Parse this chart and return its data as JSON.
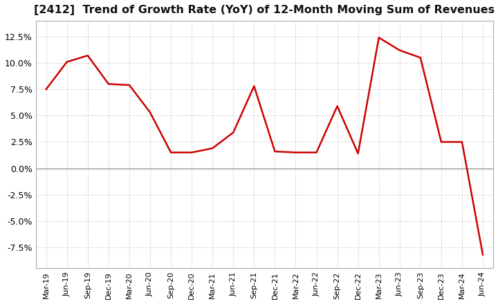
{
  "title": "[2412]  Trend of Growth Rate (YoY) of 12-Month Moving Sum of Revenues",
  "title_fontsize": 11.5,
  "line_color": "#cc0000",
  "background_color": "#ffffff",
  "grid_color": "#aaaaaa",
  "zero_line_color": "#888888",
  "ylim": [
    -9.5,
    14.0
  ],
  "yticks": [
    -7.5,
    -5.0,
    -2.5,
    0.0,
    2.5,
    5.0,
    7.5,
    10.0,
    12.5
  ],
  "x_labels": [
    "Mar-19",
    "Jun-19",
    "Sep-19",
    "Dec-19",
    "Mar-20",
    "Jun-20",
    "Sep-20",
    "Dec-20",
    "Mar-21",
    "Jun-21",
    "Sep-21",
    "Dec-21",
    "Mar-22",
    "Jun-22",
    "Sep-22",
    "Dec-22",
    "Mar-23",
    "Jun-23",
    "Sep-23",
    "Dec-23",
    "Mar-24",
    "Jun-24"
  ],
  "y_values": [
    7.5,
    10.1,
    10.7,
    8.0,
    7.9,
    5.3,
    1.5,
    1.5,
    1.9,
    3.4,
    7.8,
    1.6,
    1.5,
    1.5,
    5.9,
    1.4,
    12.4,
    11.2,
    10.5,
    2.5,
    2.5,
    -8.2
  ]
}
